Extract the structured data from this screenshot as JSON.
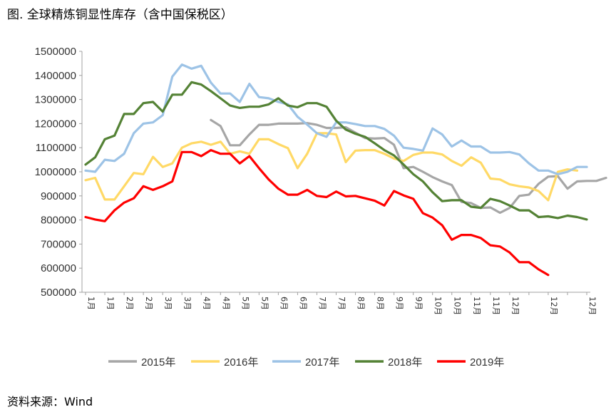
{
  "title": "图.  全球精炼铜显性库存（含中国保税区）",
  "source": "资料来源：Wind",
  "chart_data": {
    "type": "line",
    "title": "图.  全球精炼铜显性库存（含中国保税区）",
    "ylim": [
      500000,
      1500000
    ],
    "yticks": [
      500000,
      600000,
      700000,
      800000,
      900000,
      1000000,
      1100000,
      1200000,
      1300000,
      1400000,
      1500000
    ],
    "ytick_labels": [
      "500000",
      "600000",
      "700000",
      "800000",
      "900000",
      "1000000",
      "1100000",
      "1200000",
      "1300000",
      "1400000",
      "1500000"
    ],
    "x_count": 48,
    "xtick_labels": [
      "1月",
      "1月",
      "2月",
      "2月",
      "3月",
      "3月",
      "4月",
      "4月",
      "5月",
      "5月",
      "6月",
      "6月",
      "7月",
      "7月",
      "8月",
      "8月",
      "9月",
      "9月",
      "10月",
      "10月",
      "11月",
      "11月",
      "12月",
      "12月",
      "12月"
    ],
    "xtick_index": [
      0,
      2,
      4,
      6,
      8,
      10,
      12,
      14,
      16,
      18,
      20,
      22,
      24,
      26,
      28,
      30,
      32,
      34,
      36,
      38,
      40,
      42,
      44,
      46,
      47
    ],
    "grid": false,
    "legend": "bottom",
    "series": [
      {
        "name": "2015年",
        "color": "#a6a6a6",
        "start": 13,
        "values": [
          1215000,
          1190000,
          1110000,
          1110000,
          1155000,
          1195000,
          1195000,
          1200000,
          1200000,
          1200000,
          1202000,
          1195000,
          1182000,
          1182000,
          1185000,
          1162000,
          1140000,
          1138000,
          1140000,
          1112000,
          1015000,
          1020000,
          1000000,
          978000,
          960000,
          945000,
          875000,
          870000,
          850000,
          852000,
          830000,
          850000,
          900000,
          905000,
          950000,
          980000,
          982000,
          930000,
          960000,
          962000,
          962000,
          975000
        ]
      },
      {
        "name": "2016年",
        "color": "#ffd966",
        "start": 0,
        "values": [
          965000,
          975000,
          885000,
          885000,
          940000,
          995000,
          990000,
          1062000,
          1020000,
          1035000,
          1100000,
          1118000,
          1125000,
          1112000,
          1125000,
          1075000,
          1085000,
          1075000,
          1135000,
          1135000,
          1115000,
          1098000,
          1015000,
          1075000,
          1160000,
          1160000,
          1155000,
          1040000,
          1088000,
          1090000,
          1090000,
          1075000,
          1055000,
          1045000,
          1070000,
          1080000,
          1080000,
          1072000,
          1045000,
          1025000,
          1060000,
          1038000,
          972000,
          968000,
          948000,
          940000,
          935000,
          920000,
          882000,
          1000000,
          1010000,
          1005000
        ]
      },
      {
        "name": "2017年",
        "color": "#9dc3e6",
        "start": 0,
        "values": [
          1005000,
          1000000,
          1050000,
          1045000,
          1075000,
          1160000,
          1200000,
          1205000,
          1235000,
          1395000,
          1445000,
          1428000,
          1440000,
          1370000,
          1325000,
          1325000,
          1290000,
          1365000,
          1310000,
          1305000,
          1290000,
          1280000,
          1228000,
          1196000,
          1160000,
          1145000,
          1205000,
          1205000,
          1198000,
          1190000,
          1190000,
          1178000,
          1150000,
          1100000,
          1095000,
          1088000,
          1180000,
          1155000,
          1105000,
          1130000,
          1105000,
          1105000,
          1080000,
          1080000,
          1082000,
          1072000,
          1035000,
          1005000,
          1005000,
          990000,
          1000000,
          1020000,
          1020000
        ]
      },
      {
        "name": "2018年",
        "color": "#548235",
        "start": 0,
        "values": [
          1030000,
          1060000,
          1135000,
          1150000,
          1240000,
          1240000,
          1285000,
          1290000,
          1250000,
          1320000,
          1320000,
          1372000,
          1362000,
          1335000,
          1305000,
          1275000,
          1265000,
          1270000,
          1270000,
          1280000,
          1305000,
          1275000,
          1268000,
          1285000,
          1285000,
          1270000,
          1212000,
          1175000,
          1158000,
          1145000,
          1118000,
          1090000,
          1068000,
          1030000,
          990000,
          960000,
          915000,
          878000,
          882000,
          882000,
          855000,
          850000,
          888000,
          878000,
          860000,
          840000,
          840000,
          812000,
          815000,
          808000,
          818000,
          812000,
          802000
        ]
      },
      {
        "name": "2019年",
        "color": "#ff0000",
        "start": 0,
        "values": [
          812000,
          802000,
          795000,
          840000,
          872000,
          890000,
          940000,
          925000,
          940000,
          960000,
          1082000,
          1082000,
          1065000,
          1090000,
          1075000,
          1075000,
          1035000,
          1065000,
          1015000,
          968000,
          930000,
          905000,
          905000,
          925000,
          900000,
          895000,
          918000,
          898000,
          900000,
          890000,
          880000,
          860000,
          920000,
          902000,
          888000,
          828000,
          810000,
          778000,
          718000,
          738000,
          738000,
          725000,
          695000,
          690000,
          665000,
          625000,
          625000,
          595000,
          572000
        ]
      }
    ]
  }
}
